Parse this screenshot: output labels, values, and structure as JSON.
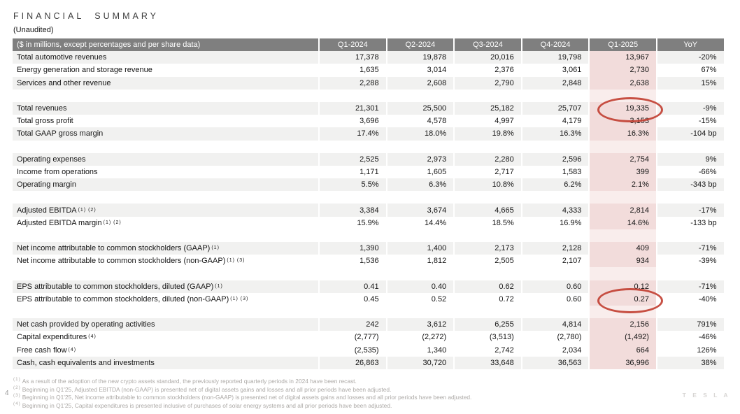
{
  "slide": {
    "title": "FINANCIAL SUMMARY",
    "subtitle": "(Unaudited)",
    "page_number": "4",
    "brand": "T E S L A"
  },
  "table": {
    "header": {
      "label": "($ in millions, except percentages and per share data)",
      "columns": [
        "Q1-2024",
        "Q2-2024",
        "Q3-2024",
        "Q4-2024",
        "Q1-2025",
        "YoY"
      ]
    },
    "highlight_column": "Q1-2025",
    "highlight_color": "#f2dcdb",
    "annotation_color": "#c13d30",
    "sections": [
      {
        "rows": [
          {
            "label": "Total automotive revenues",
            "shaded": true,
            "values": [
              "17,378",
              "19,878",
              "20,016",
              "19,798",
              "13,967",
              "-20%"
            ]
          },
          {
            "label": "Energy generation and storage revenue",
            "shaded": false,
            "values": [
              "1,635",
              "3,014",
              "2,376",
              "3,061",
              "2,730",
              "67%"
            ]
          },
          {
            "label": "Services and other revenue",
            "shaded": true,
            "values": [
              "2,288",
              "2,608",
              "2,790",
              "2,848",
              "2,638",
              "15%"
            ]
          }
        ]
      },
      {
        "rows": [
          {
            "label": "Total revenues",
            "shaded": true,
            "circled": true,
            "values": [
              "21,301",
              "25,500",
              "25,182",
              "25,707",
              "19,335",
              "-9%"
            ]
          },
          {
            "label": "Total gross profit",
            "shaded": false,
            "values": [
              "3,696",
              "4,578",
              "4,997",
              "4,179",
              "3,153",
              "-15%"
            ]
          },
          {
            "label": "Total GAAP gross margin",
            "shaded": true,
            "values": [
              "17.4%",
              "18.0%",
              "19.8%",
              "16.3%",
              "16.3%",
              "-104 bp"
            ]
          }
        ]
      },
      {
        "rows": [
          {
            "label": "Operating expenses",
            "shaded": true,
            "values": [
              "2,525",
              "2,973",
              "2,280",
              "2,596",
              "2,754",
              "9%"
            ]
          },
          {
            "label": "Income from operations",
            "shaded": false,
            "values": [
              "1,171",
              "1,605",
              "2,717",
              "1,583",
              "399",
              "-66%"
            ]
          },
          {
            "label": "Operating margin",
            "shaded": true,
            "values": [
              "5.5%",
              "6.3%",
              "10.8%",
              "6.2%",
              "2.1%",
              "-343 bp"
            ]
          }
        ]
      },
      {
        "rows": [
          {
            "label": "Adjusted EBITDA",
            "sup": "(1) (2)",
            "shaded": true,
            "values": [
              "3,384",
              "3,674",
              "4,665",
              "4,333",
              "2,814",
              "-17%"
            ]
          },
          {
            "label": "Adjusted EBITDA margin",
            "sup": "(1) (2)",
            "shaded": false,
            "values": [
              "15.9%",
              "14.4%",
              "18.5%",
              "16.9%",
              "14.6%",
              "-133 bp"
            ]
          }
        ]
      },
      {
        "rows": [
          {
            "label": "Net income attributable to common stockholders (GAAP)",
            "sup": "(1)",
            "shaded": true,
            "values": [
              "1,390",
              "1,400",
              "2,173",
              "2,128",
              "409",
              "-71%"
            ]
          },
          {
            "label": "Net income attributable to common stockholders (non-GAAP)",
            "sup": "(1) (3)",
            "shaded": false,
            "values": [
              "1,536",
              "1,812",
              "2,505",
              "2,107",
              "934",
              "-39%"
            ]
          }
        ]
      },
      {
        "rows": [
          {
            "label": "EPS attributable to common stockholders, diluted (GAAP)",
            "sup": "(1)",
            "shaded": true,
            "values": [
              "0.41",
              "0.40",
              "0.62",
              "0.60",
              "0.12",
              "-71%"
            ]
          },
          {
            "label": "EPS attributable to common stockholders, diluted (non-GAAP)",
            "sup": "(1) (3)",
            "shaded": false,
            "circled": true,
            "values": [
              "0.45",
              "0.52",
              "0.72",
              "0.60",
              "0.27",
              "-40%"
            ]
          }
        ]
      },
      {
        "rows": [
          {
            "label": "Net cash provided by operating activities",
            "shaded": true,
            "values": [
              "242",
              "3,612",
              "6,255",
              "4,814",
              "2,156",
              "791%"
            ]
          },
          {
            "label": "Capital expenditures",
            "sup": "(4)",
            "shaded": false,
            "values": [
              "(2,777)",
              "(2,272)",
              "(3,513)",
              "(2,780)",
              "(1,492)",
              "-46%"
            ]
          },
          {
            "label": "Free cash flow",
            "sup": "(4)",
            "shaded": false,
            "values": [
              "(2,535)",
              "1,340",
              "2,742",
              "2,034",
              "664",
              "126%"
            ]
          },
          {
            "label": "Cash, cash equivalents and investments",
            "shaded": true,
            "values": [
              "26,863",
              "30,720",
              "33,648",
              "36,563",
              "36,996",
              "38%"
            ]
          }
        ]
      }
    ],
    "annotations": [
      {
        "type": "red-ellipse",
        "row": "Total revenues",
        "column": "Q1-2025",
        "value": "19,335"
      },
      {
        "type": "red-ellipse",
        "row": "EPS attributable to common stockholders, diluted (non-GAAP)",
        "column": "Q1-2025",
        "value": "0.27"
      }
    ]
  },
  "footnotes": [
    {
      "ref": "(1)",
      "text": "As a result of the adoption of the new crypto assets standard, the previously reported quarterly periods in 2024 have been recast."
    },
    {
      "ref": "(2)",
      "text": "Beginning in Q1'25, Adjusted EBITDA (non-GAAP) is presented net of digital assets gains and losses and all prior periods have been adjusted."
    },
    {
      "ref": "(3)",
      "text": "Beginning in Q1'25, Net income attributable to common stockholders (non-GAAP) is presented net of digital assets gains and losses and all prior periods have been adjusted."
    },
    {
      "ref": "(4)",
      "text": "Beginning in Q1'25, Capital expenditures is presented inclusive of purchases of solar energy systems and all prior periods have been adjusted."
    }
  ]
}
